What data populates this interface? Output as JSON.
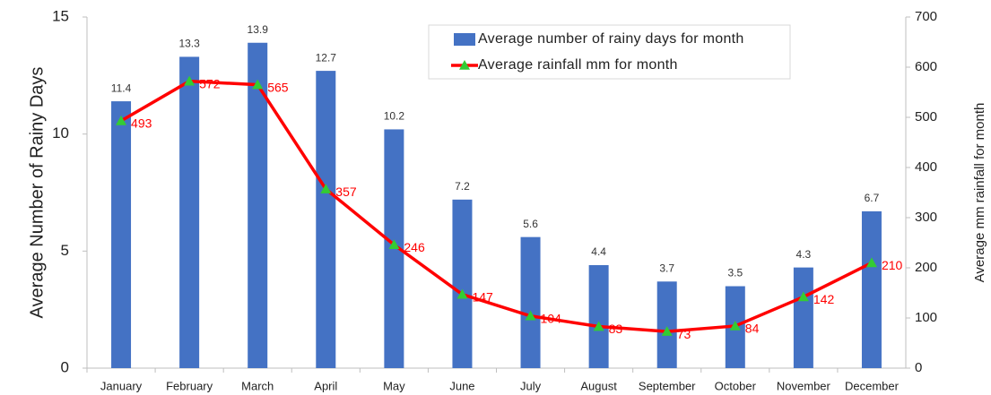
{
  "chart_data": {
    "type": "combo",
    "categories": [
      "January",
      "February",
      "March",
      "April",
      "May",
      "June",
      "July",
      "August",
      "September",
      "October",
      "November",
      "December"
    ],
    "series": [
      {
        "name": "Average number of rainy days for month",
        "type": "bar",
        "color": "#4472c4",
        "axis": "y",
        "values": [
          11.4,
          13.3,
          13.9,
          12.7,
          10.2,
          7.2,
          5.6,
          4.4,
          3.7,
          3.5,
          4.3,
          6.7
        ]
      },
      {
        "name": "Average rainfall mm for month",
        "type": "line",
        "color": "#ff0000",
        "marker_color": "#33cc33",
        "axis": "y2",
        "values": [
          493,
          572,
          565,
          357,
          246,
          147,
          104,
          83,
          73,
          84,
          142,
          210
        ]
      }
    ],
    "ylabel": "Average Number of Rainy Days",
    "y2label": "Average mm rainfall for month",
    "ylim": [
      0,
      15
    ],
    "yticks": [
      0,
      5,
      10,
      15
    ],
    "y2lim": [
      0,
      700
    ],
    "y2ticks": [
      0,
      100,
      200,
      300,
      400,
      500,
      600,
      700
    ],
    "legend": "top",
    "grid": false
  }
}
